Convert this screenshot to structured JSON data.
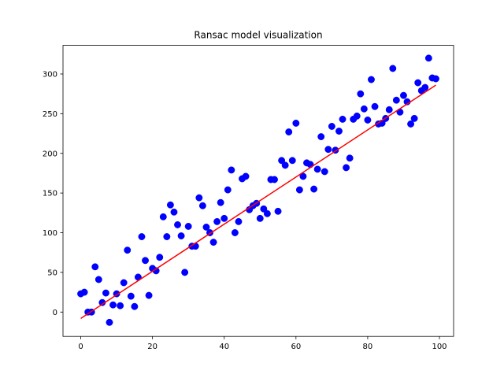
{
  "chart_data": {
    "type": "scatter",
    "title": "Ransac model visualization",
    "xlabel": "",
    "ylabel": "",
    "xlim": [
      -4.95,
      103.95
    ],
    "ylim": [
      -30.7,
      336.1
    ],
    "xticks": [
      "0",
      "20",
      "40",
      "60",
      "80",
      "100"
    ],
    "xtick_values": [
      0,
      20,
      40,
      60,
      80,
      100
    ],
    "yticks": [
      "0",
      "50",
      "100",
      "150",
      "200",
      "250",
      "300"
    ],
    "ytick_values": [
      0,
      50,
      100,
      150,
      200,
      250,
      300
    ],
    "grid": false,
    "legend": "none",
    "series": [
      {
        "kind": "points",
        "color": "#0000ff",
        "x": [
          0,
          1,
          2,
          3,
          4,
          5,
          6,
          7,
          8,
          9,
          10,
          11,
          12,
          13,
          14,
          15,
          16,
          17,
          18,
          19,
          20,
          21,
          22,
          23,
          24,
          25,
          26,
          27,
          28,
          29,
          30,
          31,
          32,
          33,
          34,
          35,
          36,
          37,
          38,
          39,
          40,
          41,
          42,
          43,
          44,
          45,
          46,
          47,
          48,
          49,
          50,
          51,
          52,
          53,
          54,
          55,
          56,
          57,
          58,
          59,
          60,
          61,
          62,
          63,
          64,
          65,
          66,
          67,
          68,
          69,
          70,
          71,
          72,
          73,
          74,
          75,
          76,
          77,
          78,
          79,
          80,
          81,
          82,
          83,
          84,
          85,
          86,
          87,
          88,
          89,
          90,
          91,
          92,
          93,
          94,
          95,
          96,
          97,
          98,
          99
        ],
        "y": [
          23,
          25,
          0,
          0,
          57,
          41,
          12,
          24,
          -13,
          9,
          23,
          8,
          37,
          78,
          20,
          7,
          44,
          95,
          65,
          21,
          55,
          52,
          69,
          120,
          95,
          135,
          126,
          110,
          96,
          50,
          108,
          83,
          83,
          144,
          134,
          107,
          100,
          88,
          114,
          138,
          118,
          154,
          179,
          100,
          114,
          168,
          171,
          129,
          134,
          137,
          118,
          130,
          124,
          167,
          167,
          127,
          191,
          185,
          227,
          191,
          238,
          154,
          171,
          188,
          186,
          155,
          180,
          221,
          177,
          205,
          234,
          204,
          228,
          243,
          182,
          194,
          243,
          247,
          275,
          256,
          242,
          293,
          259,
          237,
          238,
          244,
          255,
          307,
          267,
          252,
          273,
          265,
          237,
          244,
          289,
          279,
          283,
          320,
          295,
          294
        ]
      },
      {
        "kind": "line",
        "color": "#ff0000",
        "x": [
          0,
          99
        ],
        "y": [
          -8,
          286
        ]
      }
    ]
  }
}
